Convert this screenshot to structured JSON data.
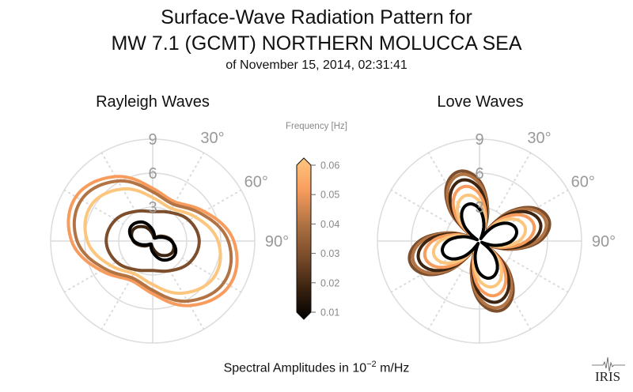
{
  "title": {
    "line1": "Surface-Wave Radiation Pattern for",
    "line2": "MW 7.1 (GCMT) NORTHERN MOLUCCA SEA",
    "line3": "of November 15, 2014, 02:31:41"
  },
  "xlabel_prefix": "Spectral Amplitudes in 10",
  "xlabel_exp": "−2",
  "xlabel_suffix": " m/Hz",
  "logo_text": "IRIS",
  "colorbar": {
    "label": "Frequency [Hz]",
    "ticks": [
      "0.06",
      "0.05",
      "0.04",
      "0.03",
      "0.02",
      "0.01"
    ],
    "range": [
      0.01,
      0.06
    ],
    "extend": "both",
    "colors": [
      "#000000",
      "#3d2410",
      "#7d4e2c",
      "#b27444",
      "#f89c5e",
      "#fdc67e"
    ]
  },
  "chart_data": [
    {
      "type": "polar-line",
      "title": "Rayleigh Waves",
      "r_ticks": [
        "3",
        "6",
        "9"
      ],
      "r_max": 9,
      "angle_labels": [
        "30°",
        "60°",
        "90°"
      ],
      "azimuth_deg": [
        0,
        30,
        60,
        90,
        120,
        150,
        180,
        210,
        240,
        270,
        300,
        330
      ],
      "series": [
        {
          "frequency": 0.05,
          "color": "#f89c5e",
          "r": [
            4.65,
            3.98,
            5.23,
            7.15,
            7.82,
            6.57,
            4.65,
            3.98,
            5.23,
            7.15,
            7.82,
            6.57
          ]
        },
        {
          "frequency": 0.04,
          "color": "#b27444",
          "r": [
            4.34,
            3.73,
            4.88,
            6.66,
            7.27,
            6.12,
            4.34,
            3.73,
            4.88,
            6.66,
            7.27,
            6.12
          ]
        },
        {
          "frequency": 0.06,
          "color": "#fdc67e",
          "r": [
            3.84,
            3.32,
            4.29,
            5.76,
            6.28,
            5.31,
            3.84,
            3.32,
            4.29,
            5.76,
            6.28,
            5.31
          ]
        },
        {
          "frequency": 0.03,
          "color": "#7d4e2c",
          "r": [
            2.6,
            2.93,
            3.68,
            4.1,
            3.77,
            3.02,
            2.6,
            2.93,
            3.68,
            4.1,
            3.77,
            3.02
          ]
        },
        {
          "frequency": 0.02,
          "color": "#3d2410",
          "r": [
            0.6,
            0.31,
            0.86,
            1.7,
            1.99,
            1.44,
            0.6,
            0.31,
            0.86,
            1.7,
            1.99,
            1.44
          ]
        },
        {
          "frequency": 0.01,
          "color": "#000000",
          "r": [
            0.96,
            0.32,
            0.66,
            1.64,
            2.29,
            1.94,
            0.96,
            0.32,
            0.66,
            1.64,
            2.29,
            1.94
          ]
        }
      ]
    },
    {
      "type": "polar-line",
      "title": "Love Waves",
      "r_ticks": [
        "3",
        "6",
        "9"
      ],
      "r_max": 9,
      "angle_labels": [
        "30°",
        "60°",
        "90°"
      ],
      "azimuth_deg": [
        0,
        15,
        30,
        45,
        60,
        75,
        90,
        105,
        120,
        135,
        150,
        165,
        180,
        195,
        210,
        225,
        240,
        255,
        270,
        285,
        300,
        315,
        330,
        345
      ],
      "series": [
        {
          "frequency": 0.03,
          "color": "#7d4e2c",
          "r": [
            5.31,
            2.8,
            0.45,
            3.58,
            5.75,
            6.39,
            5.31,
            2.8,
            0.45,
            3.58,
            5.75,
            6.39,
            5.31,
            2.8,
            0.45,
            3.58,
            5.75,
            6.39,
            5.31,
            2.8,
            0.45,
            3.58,
            5.75,
            6.39
          ]
        },
        {
          "frequency": 0.04,
          "color": "#b27444",
          "r": [
            5.06,
            2.67,
            0.43,
            3.41,
            5.48,
            6.09,
            5.06,
            2.67,
            0.43,
            3.41,
            5.48,
            6.09,
            5.06,
            2.67,
            0.43,
            3.41,
            5.48,
            6.09,
            5.06,
            2.67,
            0.43,
            3.41,
            5.48,
            6.09
          ]
        },
        {
          "frequency": 0.02,
          "color": "#3d2410",
          "r": [
            4.64,
            2.45,
            0.39,
            3.13,
            5.03,
            5.59,
            4.64,
            2.45,
            0.39,
            3.13,
            5.03,
            5.59,
            4.64,
            2.45,
            0.39,
            3.13,
            5.03,
            5.59,
            4.64,
            2.45,
            0.39,
            3.13,
            5.03,
            5.59
          ]
        },
        {
          "frequency": 0.05,
          "color": "#f89c5e",
          "r": [
            4.15,
            2.19,
            0.35,
            2.8,
            4.5,
            4.99,
            4.15,
            2.19,
            0.35,
            2.8,
            4.5,
            4.99,
            4.15,
            2.19,
            0.35,
            2.8,
            4.5,
            4.99,
            4.15,
            2.19,
            0.35,
            2.8,
            4.5,
            4.99
          ]
        },
        {
          "frequency": 0.06,
          "color": "#fdc67e",
          "r": [
            3.48,
            1.84,
            0.29,
            2.35,
            3.78,
            4.19,
            3.48,
            1.84,
            0.29,
            2.35,
            3.78,
            4.19,
            3.48,
            1.84,
            0.29,
            2.35,
            3.78,
            4.19,
            3.48,
            1.84,
            0.29,
            2.35,
            3.78,
            4.19
          ]
        },
        {
          "frequency": 0.01,
          "color": "#000000",
          "fill": "#ffffff",
          "r": [
            2.82,
            1.49,
            0.24,
            1.9,
            3.06,
            3.39,
            2.82,
            1.49,
            0.24,
            1.9,
            3.06,
            3.39,
            2.82,
            1.49,
            0.24,
            1.9,
            3.06,
            3.39,
            2.82,
            1.49,
            0.24,
            1.9,
            3.06,
            3.39
          ]
        }
      ]
    }
  ]
}
